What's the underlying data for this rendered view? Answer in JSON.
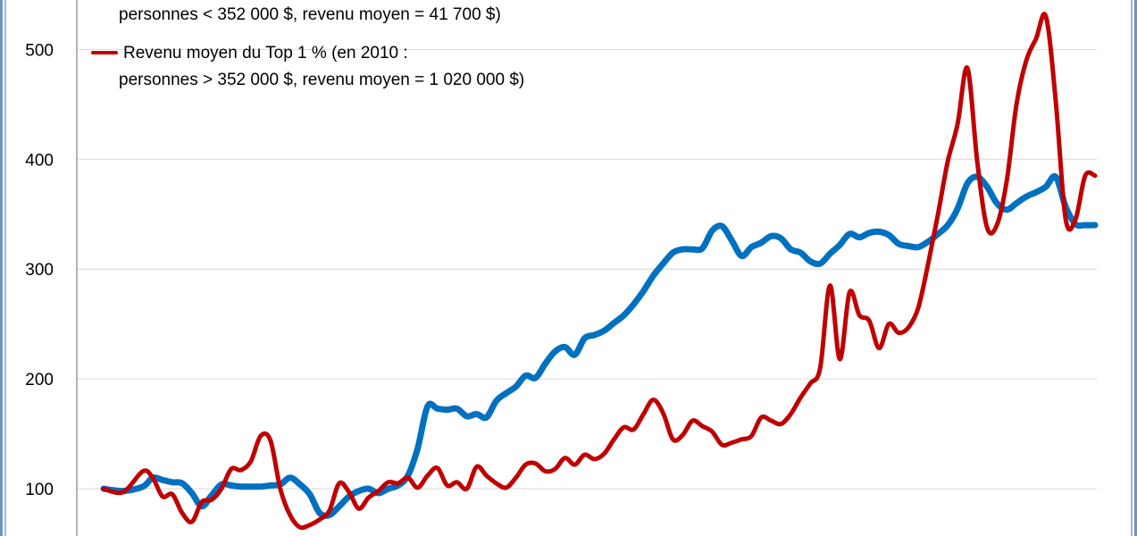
{
  "chart_data": {
    "type": "line",
    "title": "",
    "xlabel": "",
    "ylabel": "",
    "ylim": [
      57,
      545
    ],
    "yticks": [
      100,
      200,
      300,
      400,
      500
    ],
    "grid": true,
    "legend_placement": "top-left",
    "legend": [
      {
        "lines": [
          "personnes < 352 000 $, revenu moyen = 41 700 $)"
        ],
        "color": "#0070C0"
      },
      {
        "lines": [
          "Revenu moyen du Top 1 % (en 2010 :",
          "personnes > 352 000 $, revenu moyen = 1 020 000 $)"
        ],
        "color": "#C00000"
      }
    ],
    "series": [
      {
        "color": "#0070C0",
        "x": [
          0,
          2,
          4,
          5,
          6,
          7,
          8,
          9,
          10,
          11,
          12,
          13,
          14,
          15,
          16,
          17,
          18,
          19,
          20,
          21,
          22,
          23,
          24,
          25,
          26,
          27,
          28,
          29,
          30,
          31,
          32,
          33,
          34,
          35,
          36,
          37,
          38,
          39,
          40,
          41,
          42,
          43,
          44,
          45,
          46,
          47,
          48,
          49,
          50,
          51,
          52,
          53,
          54,
          55,
          56,
          57,
          58,
          59,
          60,
          61,
          62,
          63,
          64,
          65,
          66,
          67,
          68,
          69,
          70,
          71,
          72,
          73,
          74,
          75,
          76,
          77,
          78,
          79,
          80,
          81,
          82,
          83,
          84,
          85,
          86,
          87,
          88,
          89,
          90,
          91,
          92,
          93,
          94,
          95,
          96,
          97,
          98,
          99,
          100,
          101
        ],
        "values": [
          100,
          98,
          102,
          110,
          108,
          106,
          105,
          96,
          84,
          94,
          104,
          103,
          102,
          102,
          102,
          103,
          104,
          110,
          104,
          95,
          78,
          76,
          84,
          93,
          98,
          100,
          96,
          100,
          103,
          112,
          137,
          175,
          173,
          172,
          173,
          166,
          168,
          165,
          180,
          187,
          193,
          203,
          201,
          214,
          225,
          229,
          222,
          237,
          240,
          244,
          251,
          258,
          268,
          280,
          294,
          305,
          315,
          318,
          318,
          319,
          335,
          339,
          326,
          312,
          320,
          324,
          330,
          328,
          318,
          315,
          307,
          305,
          314,
          322,
          332,
          329,
          333,
          334,
          331,
          323,
          321,
          320,
          325,
          332,
          340,
          355,
          378,
          384,
          375,
          360,
          354,
          360,
          366,
          370,
          375,
          384,
          357,
          341,
          340,
          340
        ]
      },
      {
        "color": "#C00000",
        "x": [
          0,
          2,
          4,
          5,
          6,
          7,
          8,
          9,
          10,
          11,
          12,
          13,
          14,
          15,
          16,
          17,
          18,
          19,
          20,
          21,
          22,
          23,
          24,
          25,
          26,
          27,
          28,
          29,
          30,
          31,
          32,
          33,
          34,
          35,
          36,
          37,
          38,
          39,
          40,
          41,
          42,
          43,
          44,
          45,
          46,
          47,
          48,
          49,
          50,
          51,
          52,
          53,
          54,
          55,
          56,
          57,
          58,
          59,
          60,
          61,
          62,
          63,
          64,
          65,
          66,
          67,
          68,
          69,
          70,
          71,
          72,
          73,
          74,
          75,
          76,
          77,
          78,
          79,
          80,
          81,
          82,
          83,
          84,
          85,
          86,
          87,
          88,
          89,
          90,
          91,
          92,
          93,
          94,
          95,
          96,
          97,
          98,
          99,
          100,
          101
        ],
        "values": [
          100,
          97,
          116,
          110,
          93,
          95,
          78,
          70,
          88,
          90,
          100,
          118,
          117,
          125,
          148,
          144,
          100,
          76,
          65,
          67,
          72,
          80,
          105,
          97,
          82,
          92,
          98,
          106,
          105,
          110,
          101,
          112,
          119,
          103,
          106,
          100,
          120,
          112,
          105,
          101,
          110,
          122,
          123,
          116,
          118,
          128,
          122,
          131,
          127,
          132,
          145,
          156,
          154,
          168,
          181,
          169,
          145,
          149,
          162,
          157,
          152,
          140,
          142,
          145,
          148,
          165,
          162,
          159,
          168,
          183,
          196,
          210,
          285,
          218,
          279,
          258,
          253,
          228,
          250,
          242,
          247,
          265,
          305,
          350,
          398,
          432,
          483,
          398,
          338,
          340,
          380,
          450,
          490,
          510,
          530,
          453,
          346,
          345,
          385,
          385
        ]
      }
    ]
  }
}
